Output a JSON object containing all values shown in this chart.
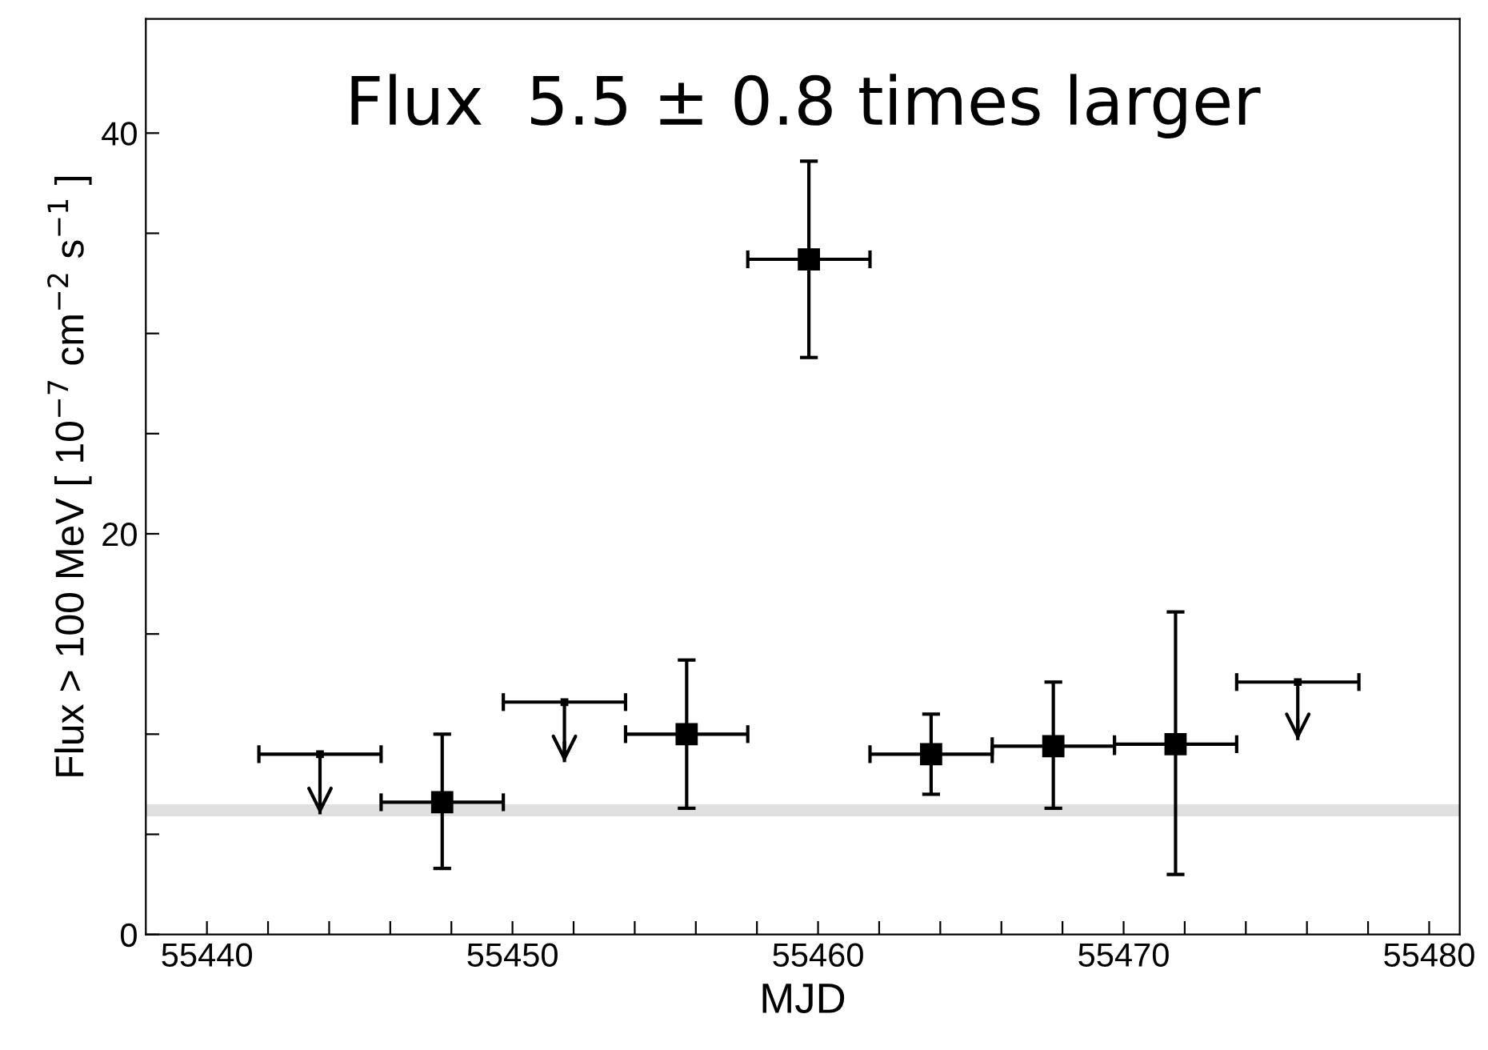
{
  "chart_data": {
    "type": "scatter",
    "title": "Flux  5.5 ± 0.8 times larger",
    "xlabel": "MJD",
    "ylabel": "Flux > 100 MeV [ 10$^{−7}$ cm$^{−2}$ s$^{−1}$ ]",
    "xlim": [
      55438,
      55481
    ],
    "xticks": [
      55440,
      {
        "value": 55442,
        "label": null
      },
      {
        "value": 55444,
        "label": null
      },
      {
        "value": 55446,
        "label": null
      },
      {
        "value": 55448,
        "label": null
      },
      55450,
      {
        "value": 55452,
        "label": null
      },
      {
        "value": 55454,
        "label": null
      },
      {
        "value": 55456,
        "label": null
      },
      {
        "value": 55458,
        "label": null
      },
      55460,
      {
        "value": 55462,
        "label": null
      },
      {
        "value": 55464,
        "label": null
      },
      {
        "value": 55466,
        "label": null
      },
      {
        "value": 55468,
        "label": null
      },
      55470,
      {
        "value": 55472,
        "label": null
      },
      {
        "value": 55474,
        "label": null
      },
      {
        "value": 55476,
        "label": null
      },
      {
        "value": 55478,
        "label": null
      },
      55480
    ],
    "ylim": [
      0,
      45.7
    ],
    "yticks": [
      0,
      {
        "value": 5,
        "label": null
      },
      {
        "value": 10,
        "label": null
      },
      {
        "value": 15,
        "label": null
      },
      20,
      {
        "value": 25,
        "label": null
      },
      {
        "value": 30,
        "label": null
      },
      {
        "value": 35,
        "label": null
      },
      40
    ],
    "bands": [
      {
        "axis": "y",
        "from": 5.9,
        "to": 6.5,
        "color": "#e0e0e0"
      }
    ],
    "series": [
      {
        "color": "#000000",
        "marker": "square",
        "x": [
          55447.7,
          55455.7,
          55459.7,
          55463.7,
          55467.7,
          55471.7
        ],
        "values": [
          6.6,
          10.0,
          33.7,
          9.0,
          9.4,
          9.5
        ],
        "errors": [
          [
            3.3,
            10.0
          ],
          [
            6.3,
            13.7
          ],
          [
            28.8,
            38.6
          ],
          [
            7.0,
            11.0
          ],
          [
            6.3,
            12.6
          ],
          [
            3.0,
            16.1
          ]
        ],
        "xerrors": [
          2,
          2,
          2,
          2,
          2,
          2
        ]
      },
      {
        "color": "#000000",
        "x": [
          55443.7,
          55451.7,
          55475.7
        ],
        "values": [
          9.0,
          11.6,
          12.6
        ],
        "errors": [
          [
            6.0,
            9.0
          ],
          [
            8.6,
            11.6
          ],
          [
            9.7,
            12.6
          ]
        ],
        "xerrors": [
          2,
          2,
          2
        ]
      }
    ]
  }
}
